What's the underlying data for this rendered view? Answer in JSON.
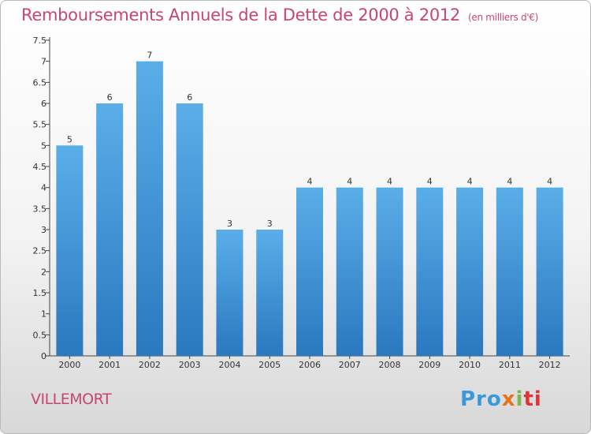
{
  "header": {
    "title": "Remboursements Annuels de la Dette de 2000 à 2012",
    "subtitle": "(en milliers d'€)"
  },
  "footer": {
    "commune": "VILLEMORT",
    "logo_parts": [
      "Pro",
      "x",
      "i",
      "ti"
    ]
  },
  "colors": {
    "title": "#c8466e",
    "bar_top": "#5aaee8",
    "bar_bottom": "#2a78bf"
  },
  "chart_data": {
    "type": "bar",
    "categories": [
      "2000",
      "2001",
      "2002",
      "2003",
      "2004",
      "2005",
      "2006",
      "2007",
      "2008",
      "2009",
      "2010",
      "2011",
      "2012"
    ],
    "values": [
      5,
      6,
      7,
      6,
      3,
      3,
      4,
      4,
      4,
      4,
      4,
      4,
      4
    ],
    "data_labels": [
      "5",
      "6",
      "7",
      "6",
      "3",
      "3",
      "4",
      "4",
      "4",
      "4",
      "4",
      "4",
      "4"
    ],
    "yticks": [
      "0",
      "0.5",
      "1",
      "1.5",
      "2",
      "2.5",
      "3",
      "3.5",
      "4",
      "4.5",
      "5",
      "5.5",
      "6",
      "6.5",
      "7",
      "7.5"
    ],
    "ylim": [
      0,
      7.5
    ],
    "grid": false
  }
}
